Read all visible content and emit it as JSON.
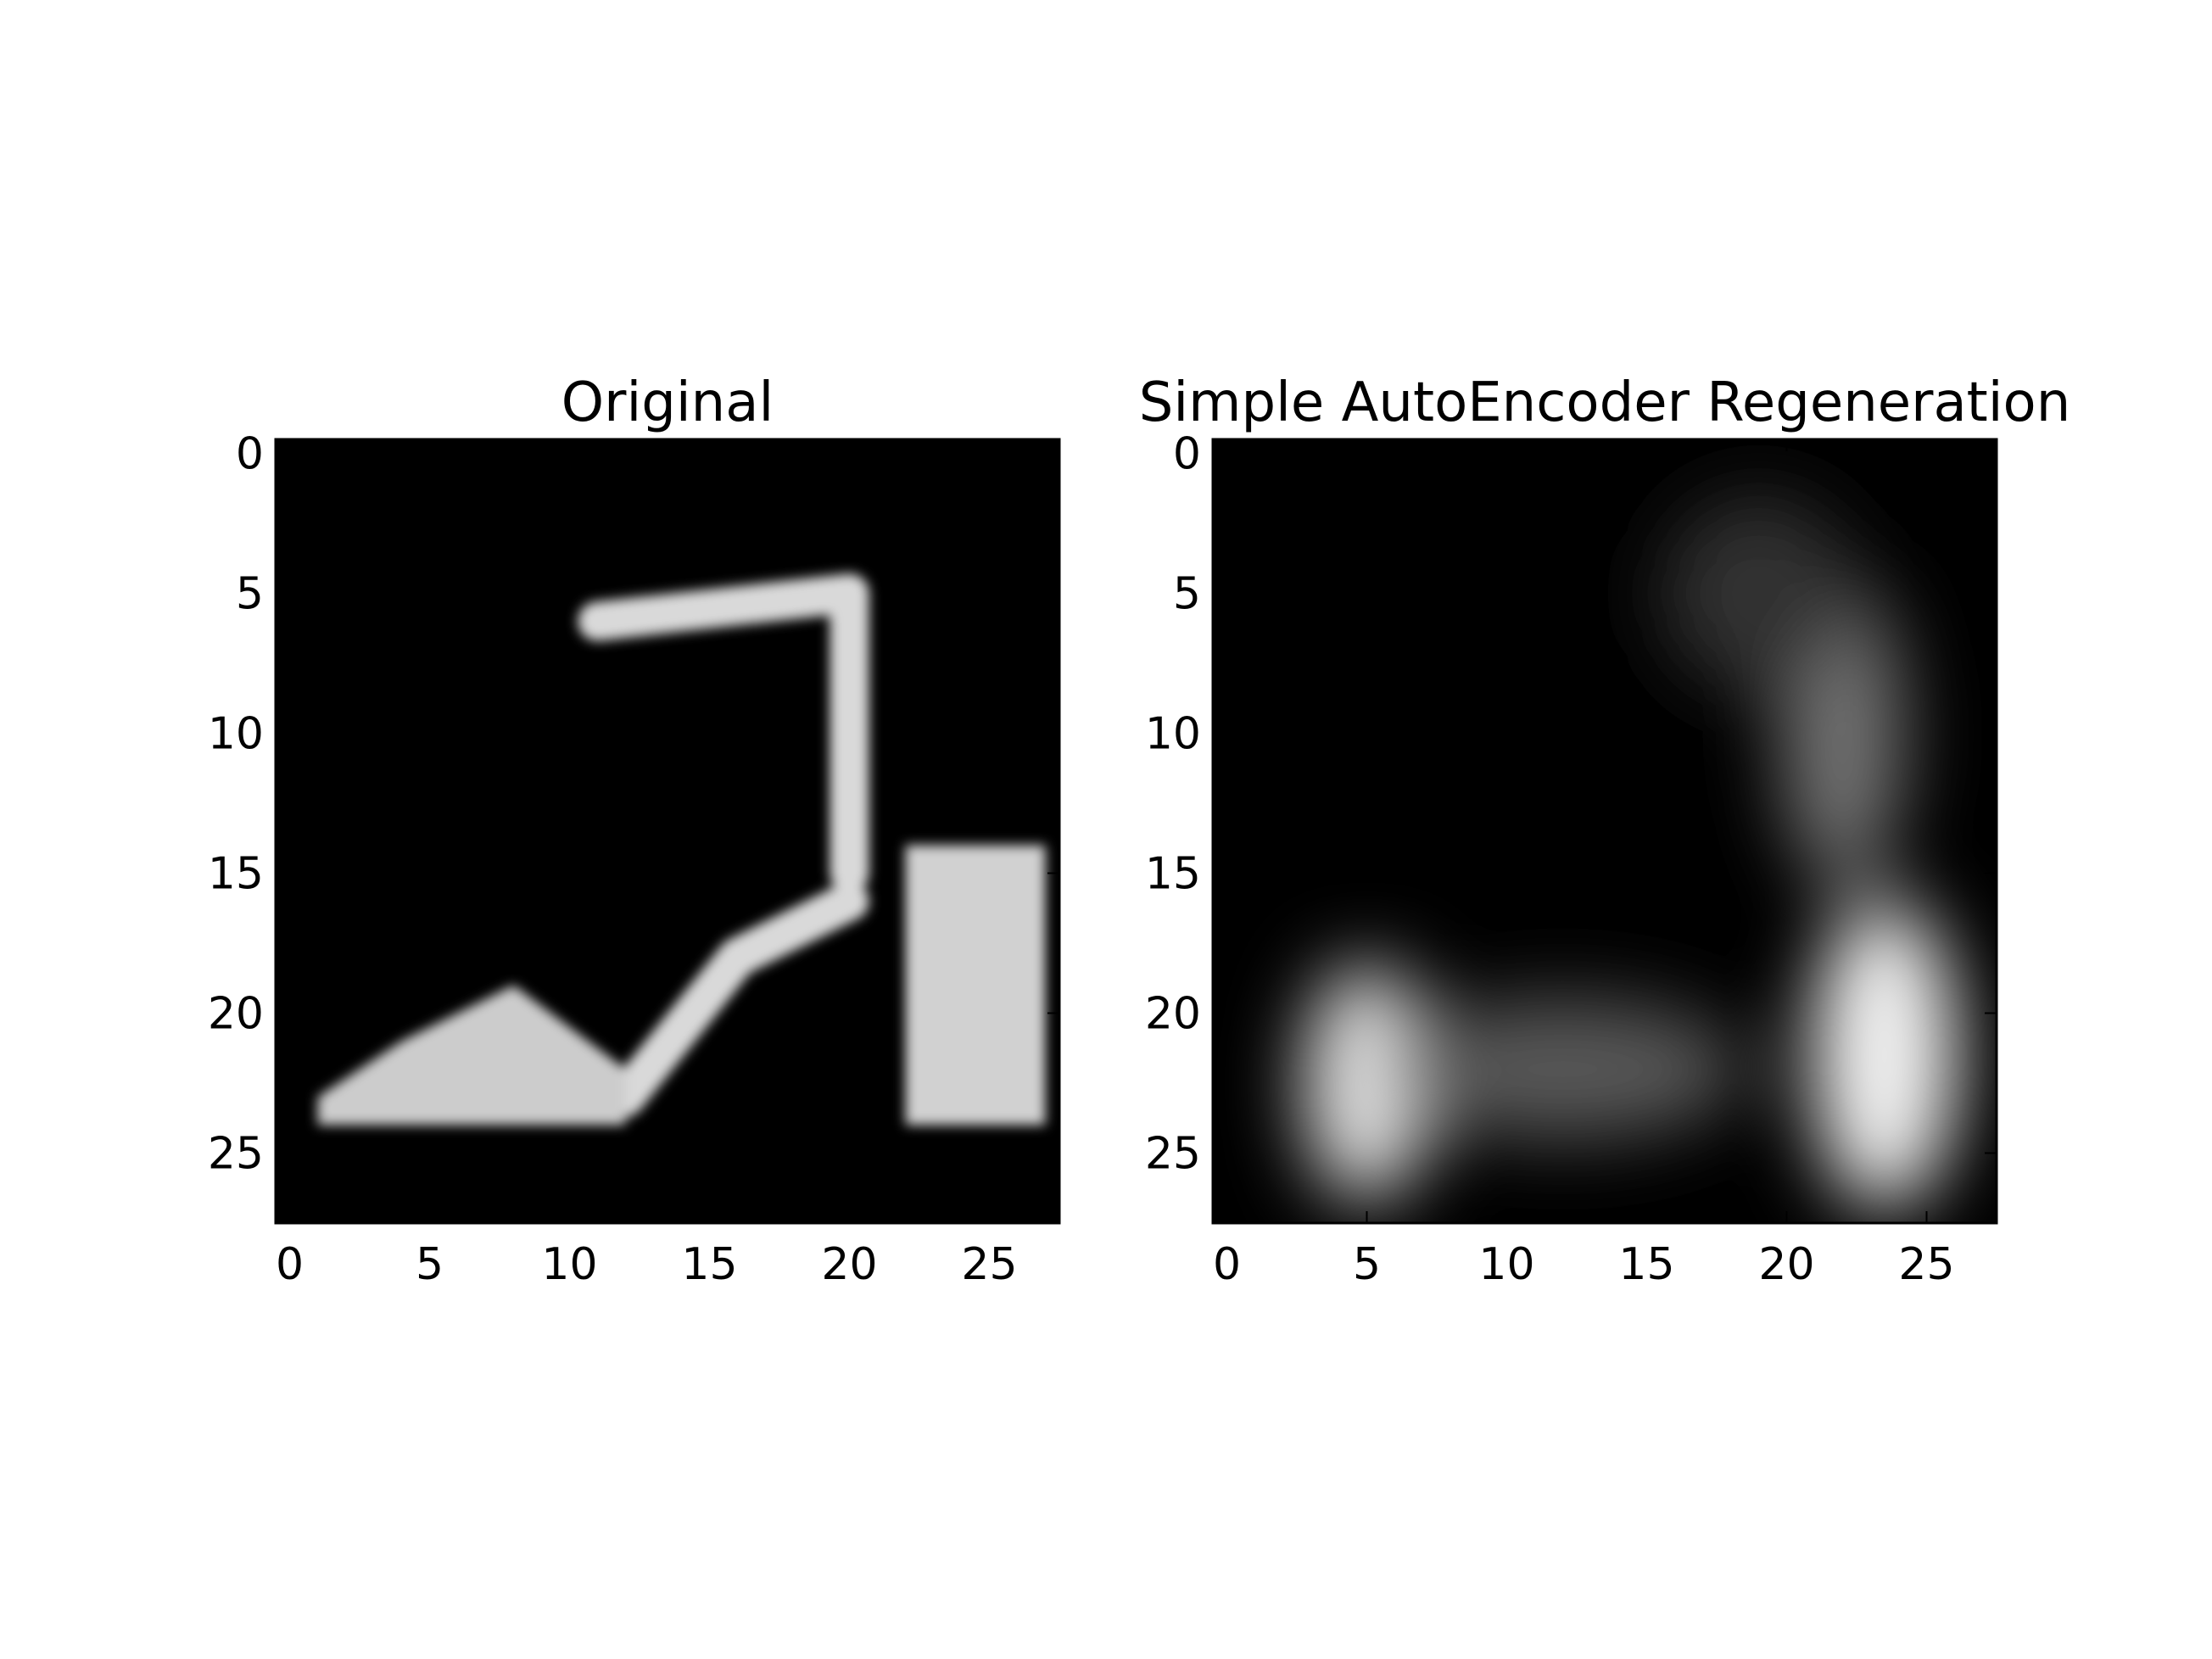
{
  "chart_data": [
    {
      "type": "heatmap",
      "title": "Original",
      "xlabel": "",
      "ylabel": "",
      "xlim": [
        -0.5,
        27.5
      ],
      "ylim": [
        27.5,
        -0.5
      ],
      "x_ticks": [
        0,
        5,
        10,
        15,
        20,
        25
      ],
      "y_ticks": [
        0,
        5,
        10,
        15,
        20,
        25
      ],
      "colormap": "gray",
      "background": "#000000",
      "grid": false,
      "image_shape": [
        28,
        28
      ],
      "bright_regions": [
        {
          "shape": "polyline",
          "points": [
            [
              11,
              6
            ],
            [
              20,
              5
            ]
          ],
          "intensity": 0.85
        },
        {
          "shape": "polyline",
          "points": [
            [
              20,
              5
            ],
            [
              20,
              15
            ]
          ],
          "intensity": 0.85
        },
        {
          "shape": "rect",
          "x": [
            22,
            27
          ],
          "y": [
            14,
            24
          ],
          "intensity": 0.82
        },
        {
          "shape": "polyline",
          "points": [
            [
              12,
              23
            ],
            [
              16,
              18
            ],
            [
              20,
              16
            ]
          ],
          "intensity": 0.85
        },
        {
          "shape": "polygon",
          "points": [
            [
              1,
              23
            ],
            [
              4,
              21
            ],
            [
              8,
              19
            ],
            [
              12,
              22
            ],
            [
              12,
              24
            ],
            [
              1,
              24
            ]
          ],
          "intensity": 0.8
        }
      ]
    },
    {
      "type": "heatmap",
      "title": "Simple AutoEncoder Regeneration",
      "xlabel": "",
      "ylabel": "",
      "xlim": [
        -0.5,
        27.5
      ],
      "ylim": [
        27.5,
        -0.5
      ],
      "x_ticks": [
        0,
        5,
        10,
        15,
        20,
        25
      ],
      "y_ticks": [
        0,
        5,
        10,
        15,
        20,
        25
      ],
      "colormap": "gray",
      "background": "#000000",
      "grid": false,
      "image_shape": [
        28,
        28
      ],
      "bright_regions": [
        {
          "shape": "blob",
          "cx": 5,
          "cy": 22.5,
          "rx": 2.2,
          "ry": 4.2,
          "intensity": 0.92
        },
        {
          "shape": "blob",
          "cx": 23.5,
          "cy": 21.5,
          "rx": 2.6,
          "ry": 5.5,
          "intensity": 0.95
        },
        {
          "shape": "blob",
          "cx": 22,
          "cy": 10,
          "rx": 2.2,
          "ry": 5.5,
          "intensity": 0.45
        },
        {
          "shape": "blob",
          "cx": 12,
          "cy": 22,
          "rx": 6.5,
          "ry": 2.5,
          "intensity": 0.35
        },
        {
          "shape": "blob",
          "cx": 19,
          "cy": 5,
          "rx": 3.5,
          "ry": 3.5,
          "intensity": 0.2
        }
      ]
    }
  ]
}
